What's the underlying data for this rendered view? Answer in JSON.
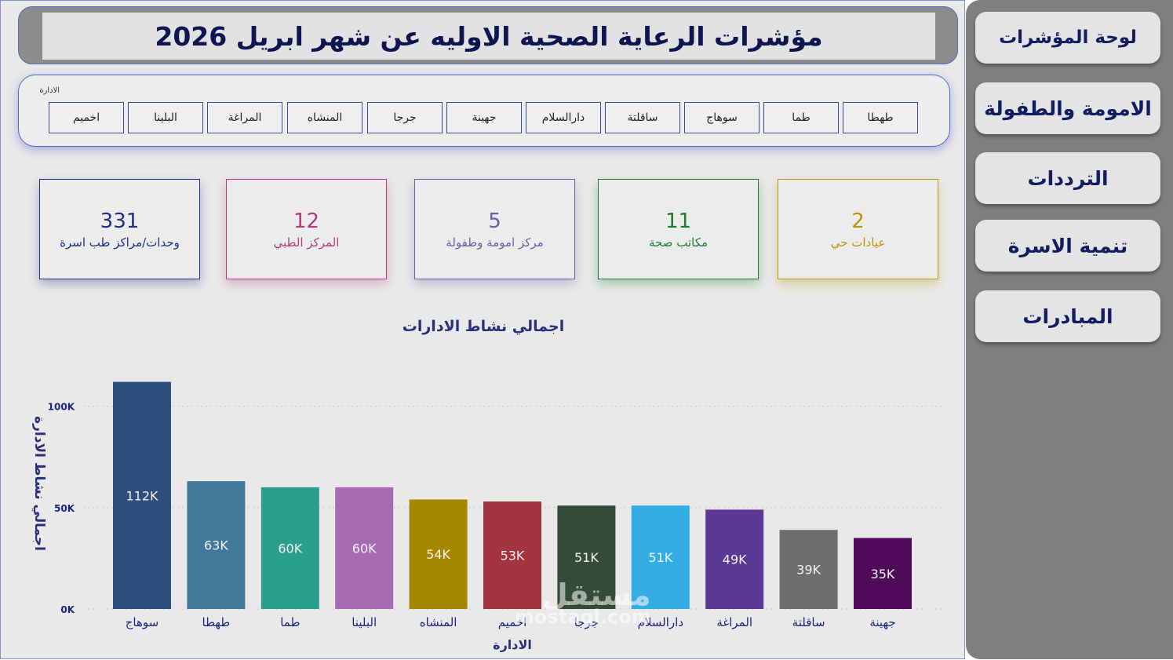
{
  "header": {
    "title": "مؤشرات الرعاية الصحية الاوليه عن شهر  ابريل 2026"
  },
  "slicer": {
    "label": "الادارة",
    "items": [
      "طهطا",
      "طما",
      "سوهاج",
      "ساقلتة",
      "دارالسلام",
      "جهينة",
      "جرجا",
      "المنشاه",
      "المراغة",
      "البلينا",
      "اخميم"
    ]
  },
  "cards": [
    {
      "value": "2",
      "label": "عيادات حي",
      "color": "#b8960c"
    },
    {
      "value": "11",
      "label": "مكاتب صحة",
      "color": "#1e7b34"
    },
    {
      "value": "5",
      "label": "مركز امومة وطفولة",
      "color": "#6e5aa8"
    },
    {
      "value": "12",
      "label": "المركز الطبي",
      "color": "#b23c7a"
    },
    {
      "value": "331",
      "label": "وحدات/مراكز طب اسرة",
      "color": "#1f2f86"
    }
  ],
  "nav": {
    "items": [
      "لوحة المؤشرات",
      "الامومة والطفولة",
      "الترددات",
      "تنمية الاسرة",
      "المبادرات"
    ]
  },
  "chart_data": {
    "type": "bar",
    "title": "اجمالي نشاط الادارات",
    "xlabel": "الادارة",
    "ylabel": "اجمالي نشاط الادارة",
    "ylim": [
      0,
      113000
    ],
    "yticks": [
      "0K",
      "50K",
      "100K"
    ],
    "grid": true,
    "categories": [
      "سوهاج",
      "طهطا",
      "طما",
      "البلينا",
      "المنشاه",
      "اخميم",
      "جرجا",
      "دارالسلام",
      "المراغة",
      "ساقلتة",
      "جهينة"
    ],
    "values": [
      112000,
      63000,
      60000,
      60000,
      54000,
      53000,
      51000,
      51000,
      49000,
      39000,
      35000
    ],
    "labels": [
      "112K",
      "63K",
      "60K",
      "60K",
      "54K",
      "53K",
      "51K",
      "51K",
      "49K",
      "39K",
      "35K"
    ],
    "colors": [
      "#2e4e7c",
      "#41789c",
      "#2aa08c",
      "#a86ab4",
      "#a68800",
      "#a3343f",
      "#354b3a",
      "#34ade3",
      "#5a3894",
      "#6e6e6e",
      "#4f0b5a"
    ]
  },
  "watermark": {
    "line1": "مستقل",
    "line2": "mostaql.com"
  }
}
